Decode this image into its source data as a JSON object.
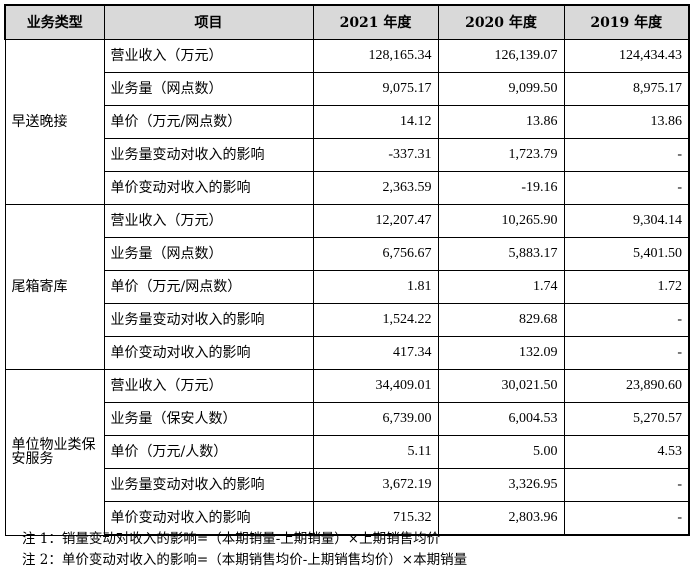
{
  "header": {
    "type": "业务类型",
    "item": "项目",
    "y2021": "2021 年度",
    "y2020": "2020 年度",
    "y2019": "2019 年度"
  },
  "groups": [
    {
      "type": "早送晚接",
      "rows": [
        {
          "item": "营业收入（万元）",
          "y2021": "128,165.34",
          "y2020": "126,139.07",
          "y2019": "124,434.43"
        },
        {
          "item": "业务量（网点数）",
          "y2021": "9,075.17",
          "y2020": "9,099.50",
          "y2019": "8,975.17"
        },
        {
          "item": "单价（万元/网点数）",
          "y2021": "14.12",
          "y2020": "13.86",
          "y2019": "13.86"
        },
        {
          "item": "业务量变动对收入的影响",
          "y2021": "-337.31",
          "y2020": "1,723.79",
          "y2019": "-"
        },
        {
          "item": "单价变动对收入的影响",
          "y2021": "2,363.59",
          "y2020": "-19.16",
          "y2019": "-"
        }
      ]
    },
    {
      "type": "尾箱寄库",
      "rows": [
        {
          "item": "营业收入（万元）",
          "y2021": "12,207.47",
          "y2020": "10,265.90",
          "y2019": "9,304.14"
        },
        {
          "item": "业务量（网点数）",
          "y2021": "6,756.67",
          "y2020": "5,883.17",
          "y2019": "5,401.50"
        },
        {
          "item": "单价（万元/网点数）",
          "y2021": "1.81",
          "y2020": "1.74",
          "y2019": "1.72"
        },
        {
          "item": "业务量变动对收入的影响",
          "y2021": "1,524.22",
          "y2020": "829.68",
          "y2019": "-"
        },
        {
          "item": "单价变动对收入的影响",
          "y2021": "417.34",
          "y2020": "132.09",
          "y2019": "-"
        }
      ]
    },
    {
      "type": "单位物业类保安服务",
      "rows": [
        {
          "item": "营业收入（万元）",
          "y2021": "34,409.01",
          "y2020": "30,021.50",
          "y2019": "23,890.60"
        },
        {
          "item": "业务量（保安人数）",
          "y2021": "6,739.00",
          "y2020": "6,004.53",
          "y2019": "5,270.57"
        },
        {
          "item": "单价（万元/人数）",
          "y2021": "5.11",
          "y2020": "5.00",
          "y2019": "4.53"
        },
        {
          "item": "业务量变动对收入的影响",
          "y2021": "3,672.19",
          "y2020": "3,326.95",
          "y2019": "-"
        },
        {
          "item": "单价变动对收入的影响",
          "y2021": "715.32",
          "y2020": "2,803.96",
          "y2019": "-"
        }
      ]
    }
  ],
  "notes": [
    "注 1：销量变动对收入的影响=（本期销量-上期销量）×上期销售均价",
    "注 2：单价变动对收入的影响=（本期销售均价-上期销售均价）×本期销量"
  ]
}
